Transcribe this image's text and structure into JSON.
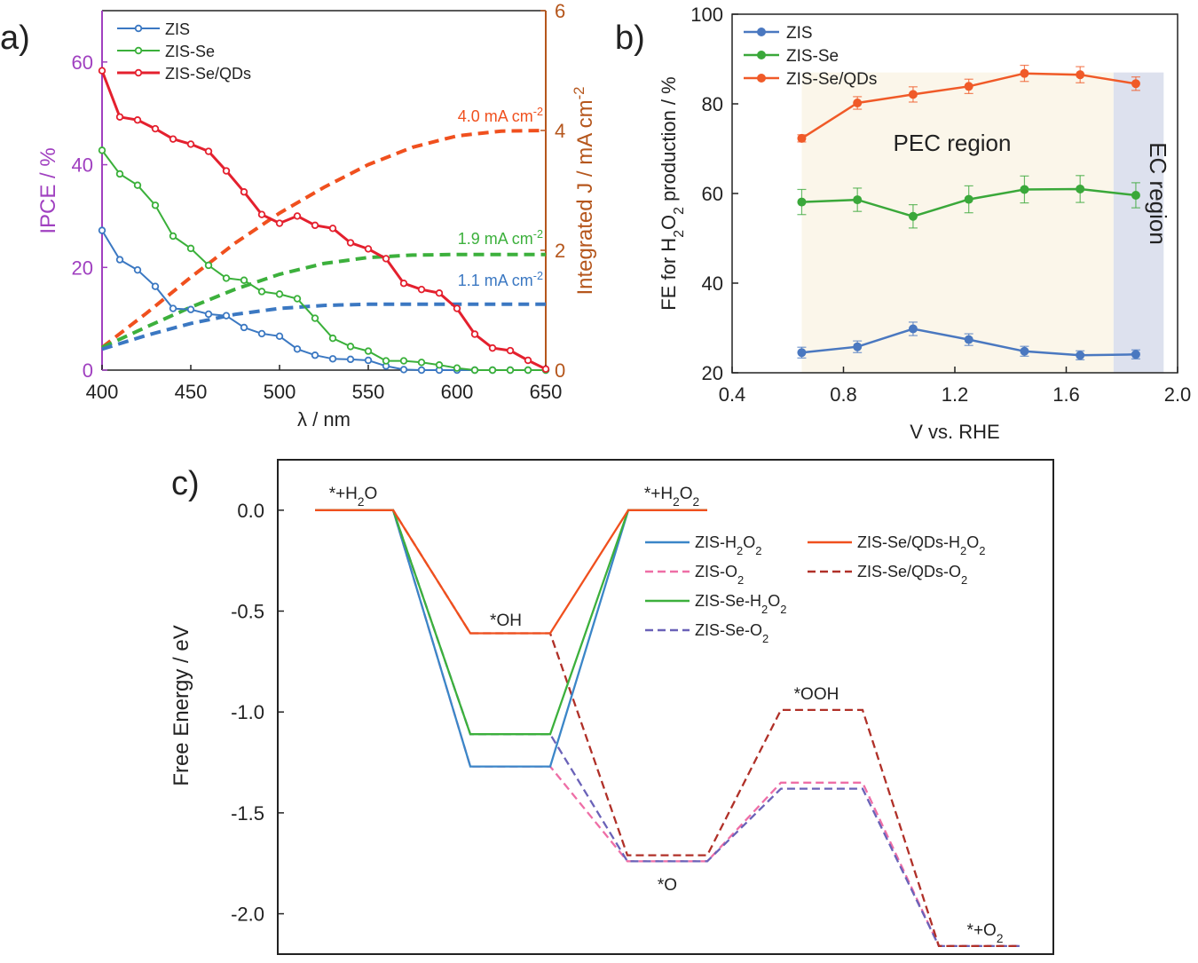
{
  "colors": {
    "zis": "#3b78c2",
    "zis_se": "#3ab03a",
    "zis_se_qds": "#e4202e",
    "ipce_axis": "#a040c0",
    "integrated_axis": "#b5561c",
    "b_zis": "#4a78c0",
    "b_zis_se": "#3aa83a",
    "b_zis_se_qds": "#f05a28",
    "pec_region": "#fbf6ea",
    "ec_region": "#dde1ee",
    "c_zis_h2o2": "#3b86c8",
    "c_zis_o2": "#ee6ea6",
    "c_zis_se_h2o2": "#3cb03c",
    "c_zis_se_o2": "#6a62b8",
    "c_qds_h2o2": "#f0501e",
    "c_qds_o2": "#b03028",
    "curr_red": "#f0501e",
    "curr_green": "#3cb03c",
    "curr_blue": "#3b78c2"
  },
  "chart_data": [
    {
      "panel": "a)",
      "type": "line",
      "xlabel": "λ / nm",
      "ylabel_left": "IPCE / %",
      "ylabel_right": "Integrated J / mA cm",
      "ylabel_right_sup": "-2",
      "xlim": [
        400,
        650
      ],
      "ylim_left": [
        0,
        70
      ],
      "ylim_right": [
        0,
        6
      ],
      "xticks": [
        "400",
        "450",
        "500",
        "550",
        "600",
        "650"
      ],
      "yticks_left": [
        "0",
        "20",
        "40",
        "60"
      ],
      "yticks_right": [
        "0",
        "2",
        "4",
        "6"
      ],
      "legend": [
        "ZIS",
        "ZIS-Se",
        "ZIS-Se/QDs"
      ],
      "series": [
        {
          "name": "ZIS",
          "x": [
            400,
            410,
            420,
            430,
            440,
            450,
            460,
            470,
            480,
            490,
            500,
            510,
            520,
            530,
            540,
            550,
            560,
            570,
            580,
            590,
            600,
            610,
            620,
            630,
            640,
            650
          ],
          "values": [
            27.2,
            21.5,
            19.5,
            16.3,
            12.0,
            11.8,
            10.9,
            10.6,
            8.3,
            7.1,
            6.6,
            4.1,
            2.9,
            2.2,
            2.1,
            1.9,
            0.8,
            0.1,
            0,
            0,
            0,
            0,
            0,
            0,
            0,
            0
          ]
        },
        {
          "name": "ZIS-Se",
          "x": [
            400,
            410,
            420,
            430,
            440,
            450,
            460,
            470,
            480,
            490,
            500,
            510,
            520,
            530,
            540,
            550,
            560,
            570,
            580,
            590,
            600,
            610,
            620,
            630,
            640,
            650
          ],
          "values": [
            42.8,
            38.2,
            36.0,
            32.1,
            26.1,
            23.7,
            20.4,
            17.9,
            17.5,
            15.3,
            14.8,
            13.9,
            10.1,
            6.2,
            4.6,
            3.7,
            1.8,
            1.8,
            1.5,
            1.0,
            0.4,
            0,
            0,
            0,
            0,
            0
          ]
        },
        {
          "name": "ZIS-Se/QDs",
          "x": [
            400,
            410,
            420,
            430,
            440,
            450,
            460,
            470,
            480,
            490,
            500,
            510,
            520,
            530,
            540,
            550,
            560,
            570,
            580,
            590,
            600,
            610,
            620,
            630,
            640,
            650
          ],
          "values": [
            58.3,
            49.3,
            48.7,
            47.0,
            45.0,
            44.0,
            42.6,
            38.8,
            34.7,
            30.3,
            28.6,
            30.0,
            28.2,
            27.6,
            24.8,
            23.6,
            21.7,
            16.9,
            15.7,
            15.0,
            12.0,
            7.0,
            4.3,
            3.8,
            1.9,
            0.2
          ]
        }
      ],
      "integrated": [
        {
          "name": "ZIS-Se/QDs",
          "label": "4.0 mA cm",
          "sup": "-2",
          "x": [
            400,
            425,
            450,
            475,
            500,
            525,
            550,
            575,
            600,
            625,
            650
          ],
          "values": [
            0.38,
            0.95,
            1.55,
            2.12,
            2.62,
            3.05,
            3.43,
            3.72,
            3.91,
            3.99,
            4.0
          ]
        },
        {
          "name": "ZIS-Se",
          "label": "1.9 mA cm",
          "sup": "-2",
          "x": [
            400,
            425,
            450,
            475,
            500,
            525,
            550,
            575,
            600,
            625,
            650
          ],
          "values": [
            0.38,
            0.72,
            1.05,
            1.35,
            1.6,
            1.78,
            1.88,
            1.92,
            1.93,
            1.93,
            1.93
          ]
        },
        {
          "name": "ZIS",
          "label": "1.1 mA cm",
          "sup": "-2",
          "x": [
            400,
            425,
            450,
            475,
            500,
            525,
            550,
            575,
            600,
            625,
            650
          ],
          "values": [
            0.35,
            0.58,
            0.78,
            0.93,
            1.03,
            1.08,
            1.1,
            1.1,
            1.1,
            1.1,
            1.1
          ]
        }
      ]
    },
    {
      "panel": "b)",
      "type": "line",
      "xlabel": "V vs. RHE",
      "ylabel": "FE for H2O2 production / %",
      "xlim": [
        0.4,
        2.0
      ],
      "ylim": [
        20,
        100
      ],
      "xticks": [
        "0.4",
        "0.8",
        "1.2",
        "1.6",
        "2.0"
      ],
      "yticks": [
        "20",
        "40",
        "60",
        "80",
        "100"
      ],
      "legend": [
        "ZIS",
        "ZIS-Se",
        "ZIS-Se/QDs"
      ],
      "region_labels": [
        "PEC region",
        "EC region"
      ],
      "region_bounds": [
        0.65,
        1.77,
        1.95
      ],
      "x": [
        0.65,
        0.85,
        1.05,
        1.25,
        1.45,
        1.65,
        1.85
      ],
      "series": [
        {
          "name": "ZIS",
          "values": [
            24.5,
            25.8,
            29.8,
            27.4,
            24.8,
            23.9,
            24.1
          ],
          "err": [
            1.2,
            1.3,
            1.5,
            1.3,
            1.1,
            1.0,
            1.0
          ]
        },
        {
          "name": "ZIS-Se",
          "values": [
            58.1,
            58.6,
            54.9,
            58.7,
            60.9,
            61.0,
            59.6
          ],
          "err": [
            2.8,
            2.6,
            2.6,
            3.0,
            3.0,
            3.0,
            2.8
          ]
        },
        {
          "name": "ZIS-Se/QDs",
          "values": [
            72.3,
            80.2,
            82.1,
            83.9,
            86.8,
            86.5,
            84.5
          ],
          "err": [
            0.8,
            1.4,
            1.7,
            1.6,
            1.8,
            1.8,
            1.5
          ]
        }
      ]
    },
    {
      "panel": "c)",
      "type": "line",
      "ylabel": "Free Energy / eV",
      "ylim": [
        -2.2,
        0.25
      ],
      "yticks": [
        "0.0",
        "-0.5",
        "-1.0",
        "-1.5",
        "-2.0"
      ],
      "state_labels": [
        "*+H2O",
        "*OH",
        "*+H2O2",
        "*O",
        "*OOH",
        "*+O2"
      ],
      "legend": [
        "ZIS-H2O2",
        "ZIS-O2",
        "ZIS-Se-H2O2",
        "ZIS-Se-O2",
        "ZIS-Se/QDs-H2O2",
        "ZIS-Se/QDs-O2"
      ],
      "series": [
        {
          "name": "ZIS-H2O2",
          "path": [
            "*+H2O",
            "*OH",
            "*+H2O2"
          ],
          "values": [
            0,
            -1.27,
            0
          ]
        },
        {
          "name": "ZIS-O2",
          "path": [
            "*+H2O",
            "*OH",
            "*O",
            "*OOH",
            "*+O2"
          ],
          "values": [
            0,
            -1.27,
            -1.74,
            -1.35,
            -2.16
          ]
        },
        {
          "name": "ZIS-Se-H2O2",
          "path": [
            "*+H2O",
            "*OH",
            "*+H2O2"
          ],
          "values": [
            0,
            -1.11,
            0
          ]
        },
        {
          "name": "ZIS-Se-O2",
          "path": [
            "*+H2O",
            "*OH",
            "*O",
            "*OOH",
            "*+O2"
          ],
          "values": [
            0,
            -1.11,
            -1.74,
            -1.38,
            -2.16
          ]
        },
        {
          "name": "ZIS-Se/QDs-H2O2",
          "path": [
            "*+H2O",
            "*OH",
            "*+H2O2"
          ],
          "values": [
            0,
            -0.61,
            0
          ]
        },
        {
          "name": "ZIS-Se/QDs-O2",
          "path": [
            "*+H2O",
            "*OH",
            "*O",
            "*OOH",
            "*+O2"
          ],
          "values": [
            0,
            -0.61,
            -1.71,
            -0.99,
            -2.16
          ]
        }
      ]
    }
  ]
}
